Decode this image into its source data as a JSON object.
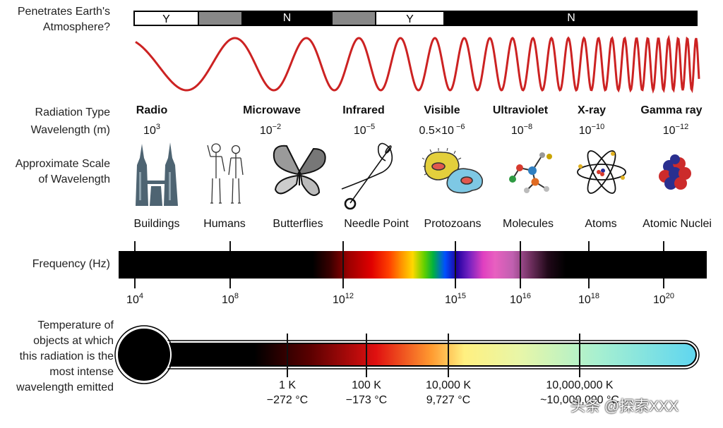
{
  "labels": {
    "penetrates_line1": "Penetrates Earth's",
    "penetrates_line2": "Atmosphere?",
    "radiation_type": "Radiation Type",
    "wavelength": "Wavelength (m)",
    "scale_line1": "Approximate Scale",
    "scale_line2": "of Wavelength",
    "frequency": "Frequency (Hz)",
    "temp_line1": "Temperature of",
    "temp_line2": "objects at which",
    "temp_line3": "this radiation is the",
    "temp_line4": "most intense",
    "temp_line5": "wavelength emitted"
  },
  "atmosphere_bar": [
    {
      "label": "Y",
      "kind": "yes"
    },
    {
      "label": "",
      "kind": "partial"
    },
    {
      "label": "N",
      "kind": "no"
    },
    {
      "label": "",
      "kind": "partial"
    },
    {
      "label": "Y",
      "kind": "yes"
    },
    {
      "label": "N",
      "kind": "no"
    }
  ],
  "radiation_types": [
    {
      "name": "Radio",
      "base": "10",
      "exp": "3",
      "scale": "Buildings",
      "icon": "buildings-icon"
    },
    {
      "name": "Microwave",
      "base": "10",
      "exp": "−2",
      "scale": "Humans",
      "icon": "humans-icon"
    },
    {
      "name": "",
      "base": "",
      "exp": "",
      "scale": "Butterflies",
      "icon": "butterfly-icon"
    },
    {
      "name": "Infrared",
      "base": "10",
      "exp": "−5",
      "scale": "Needle Point",
      "icon": "needle-icon"
    },
    {
      "name": "Visible",
      "base": "0.5×10",
      "exp": " −6",
      "scale": "Protozoans",
      "icon": "protozoan-icon"
    },
    {
      "name": "Ultraviolet",
      "base": "10",
      "exp": "−8",
      "scale": "Molecules",
      "icon": "molecule-icon"
    },
    {
      "name": "X-ray",
      "base": "10",
      "exp": "−10",
      "scale": "Atoms",
      "icon": "atom-icon"
    },
    {
      "name": "Gamma ray",
      "base": "10",
      "exp": "−12",
      "scale": "Atomic Nuclei",
      "icon": "nucleus-icon"
    }
  ],
  "frequency_ticks": [
    {
      "base": "10",
      "exp": "4"
    },
    {
      "base": "10",
      "exp": "8"
    },
    {
      "base": "10",
      "exp": "12"
    },
    {
      "base": "10",
      "exp": "15"
    },
    {
      "base": "10",
      "exp": "16"
    },
    {
      "base": "10",
      "exp": "18"
    },
    {
      "base": "10",
      "exp": "20"
    }
  ],
  "temperature_ticks": [
    {
      "kelvin": "1 K",
      "celsius": "−272 °C"
    },
    {
      "kelvin": "100 K",
      "celsius": "−173 °C"
    },
    {
      "kelvin": "10,000 K",
      "celsius": "9,727 °C"
    },
    {
      "kelvin": "10,000,000 K",
      "celsius": "~10,000,000 °C"
    }
  ],
  "watermark": "头条 @探索XXX",
  "colors": {
    "wave": "#cc2222",
    "bar_black": "#000000",
    "bar_gray": "#888888",
    "thermo_end": "#5fd6f0"
  }
}
